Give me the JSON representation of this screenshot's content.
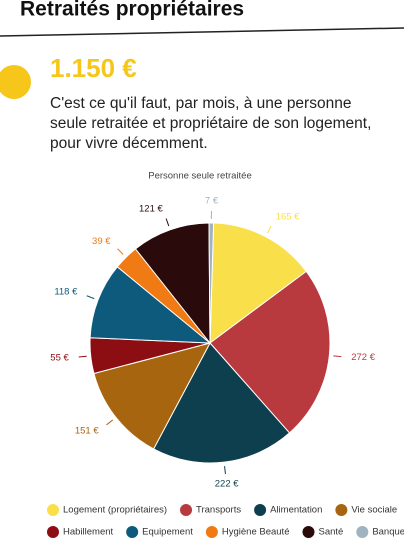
{
  "header": {
    "title": "Retraités propriétaires",
    "headline": "1.150 €",
    "description": [
      "C'est ce qu'il faut, par mois, à une personne",
      "seule retraitée et propriétaire de son logement,",
      "pour vivre décemment."
    ]
  },
  "chart_data": {
    "type": "pie",
    "title": "Personne seule retraitée",
    "categories": [
      "Logement (propriétaires)",
      "Transports",
      "Alimentation",
      "Vie sociale",
      "Habillement",
      "Equipement",
      "Hygiène Beauté",
      "Santé",
      "Banque"
    ],
    "values": [
      165,
      272,
      222,
      151,
      55,
      118,
      39,
      121,
      7
    ],
    "value_labels": [
      "165 €",
      "272 €",
      "222 €",
      "151 €",
      "55 €",
      "118 €",
      "39 €",
      "121 €",
      "7 €"
    ],
    "colors": [
      "#f9e04b",
      "#b83a3e",
      "#0d3f4e",
      "#a8650f",
      "#8c0d12",
      "#0d5a7c",
      "#f07a14",
      "#2a0a0a",
      "#9fb3c0"
    ]
  }
}
